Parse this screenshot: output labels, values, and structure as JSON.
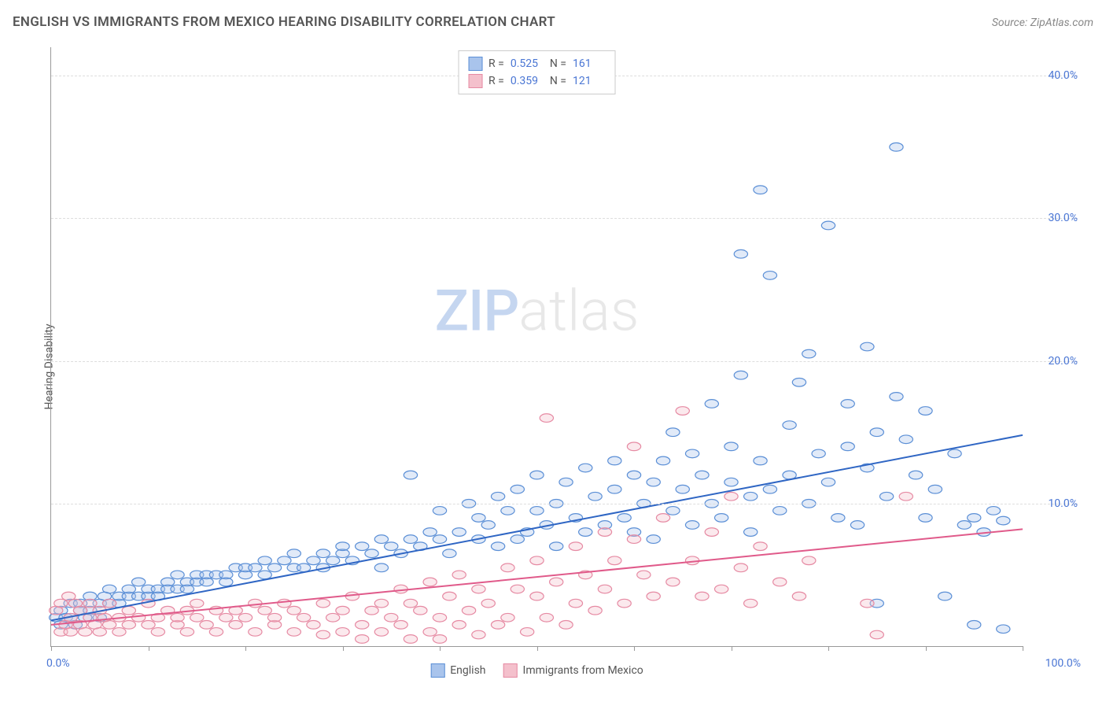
{
  "header": {
    "title": "ENGLISH VS IMMIGRANTS FROM MEXICO HEARING DISABILITY CORRELATION CHART",
    "source": "Source: ZipAtlas.com"
  },
  "watermark": {
    "part1": "ZIP",
    "part2": "atlas"
  },
  "chart": {
    "type": "scatter",
    "ylabel": "Hearing Disability",
    "background_color": "#ffffff",
    "grid_color": "#dddddd",
    "axis_color": "#999999",
    "xlim": [
      0,
      100
    ],
    "ylim": [
      0,
      42
    ],
    "yticks": [
      10,
      20,
      30,
      40
    ],
    "ytick_labels": [
      "10.0%",
      "20.0%",
      "30.0%",
      "40.0%"
    ],
    "ytick_color": "#4a76d4",
    "xticks": [
      0,
      10,
      20,
      30,
      40,
      50,
      60,
      70,
      80,
      90,
      100
    ],
    "xaxis_min_label": "0.0%",
    "xaxis_max_label": "100.0%",
    "xaxis_label_color": "#4a76d4",
    "marker_radius": 7,
    "marker_stroke_width": 1.2,
    "marker_fill_opacity": 0.35,
    "trend_line_width": 2,
    "series": [
      {
        "name": "English",
        "color_fill": "#a9c4ec",
        "color_stroke": "#5b8fd6",
        "trend_color": "#2f66c4",
        "r_value": "0.525",
        "n_value": "161",
        "trend_start": [
          0,
          1.8
        ],
        "trend_end": [
          100,
          14.8
        ],
        "points": [
          [
            0.5,
            2.0
          ],
          [
            1,
            1.5
          ],
          [
            1,
            2.5
          ],
          [
            1.5,
            2.0
          ],
          [
            2,
            3.0
          ],
          [
            2,
            2.0
          ],
          [
            2.5,
            1.5
          ],
          [
            3,
            2.5
          ],
          [
            3,
            3.0
          ],
          [
            3.5,
            2.0
          ],
          [
            4,
            3.5
          ],
          [
            4,
            2.5
          ],
          [
            5,
            3.0
          ],
          [
            5,
            2.0
          ],
          [
            5.5,
            3.5
          ],
          [
            6,
            3.0
          ],
          [
            6,
            4.0
          ],
          [
            7,
            3.0
          ],
          [
            7,
            3.5
          ],
          [
            8,
            3.5
          ],
          [
            8,
            4.0
          ],
          [
            9,
            3.5
          ],
          [
            9,
            4.5
          ],
          [
            10,
            3.5
          ],
          [
            10,
            4.0
          ],
          [
            11,
            4.0
          ],
          [
            11,
            3.5
          ],
          [
            12,
            4.5
          ],
          [
            12,
            4.0
          ],
          [
            13,
            4.0
          ],
          [
            13,
            5.0
          ],
          [
            14,
            4.5
          ],
          [
            14,
            4.0
          ],
          [
            15,
            4.5
          ],
          [
            15,
            5.0
          ],
          [
            16,
            5.0
          ],
          [
            16,
            4.5
          ],
          [
            17,
            5.0
          ],
          [
            18,
            5.0
          ],
          [
            18,
            4.5
          ],
          [
            19,
            5.5
          ],
          [
            20,
            5.0
          ],
          [
            20,
            5.5
          ],
          [
            21,
            5.5
          ],
          [
            22,
            5.0
          ],
          [
            22,
            6.0
          ],
          [
            23,
            5.5
          ],
          [
            24,
            6.0
          ],
          [
            25,
            5.5
          ],
          [
            25,
            6.5
          ],
          [
            26,
            5.5
          ],
          [
            27,
            6.0
          ],
          [
            28,
            6.5
          ],
          [
            28,
            5.5
          ],
          [
            29,
            6.0
          ],
          [
            30,
            6.5
          ],
          [
            30,
            7.0
          ],
          [
            31,
            6.0
          ],
          [
            32,
            7.0
          ],
          [
            33,
            6.5
          ],
          [
            34,
            5.5
          ],
          [
            34,
            7.5
          ],
          [
            35,
            7.0
          ],
          [
            36,
            6.5
          ],
          [
            37,
            7.5
          ],
          [
            37,
            12.0
          ],
          [
            38,
            7.0
          ],
          [
            39,
            8.0
          ],
          [
            40,
            7.5
          ],
          [
            40,
            9.5
          ],
          [
            41,
            6.5
          ],
          [
            42,
            8.0
          ],
          [
            43,
            10.0
          ],
          [
            44,
            7.5
          ],
          [
            44,
            9.0
          ],
          [
            45,
            8.5
          ],
          [
            46,
            7.0
          ],
          [
            46,
            10.5
          ],
          [
            47,
            9.5
          ],
          [
            48,
            7.5
          ],
          [
            48,
            11.0
          ],
          [
            49,
            8.0
          ],
          [
            50,
            9.5
          ],
          [
            50,
            12.0
          ],
          [
            51,
            8.5
          ],
          [
            52,
            10.0
          ],
          [
            52,
            7.0
          ],
          [
            53,
            11.5
          ],
          [
            54,
            9.0
          ],
          [
            55,
            8.0
          ],
          [
            55,
            12.5
          ],
          [
            56,
            10.5
          ],
          [
            57,
            8.5
          ],
          [
            58,
            11.0
          ],
          [
            58,
            13.0
          ],
          [
            59,
            9.0
          ],
          [
            60,
            12.0
          ],
          [
            60,
            8.0
          ],
          [
            61,
            10.0
          ],
          [
            62,
            11.5
          ],
          [
            62,
            7.5
          ],
          [
            63,
            13.0
          ],
          [
            64,
            9.5
          ],
          [
            64,
            15.0
          ],
          [
            65,
            11.0
          ],
          [
            66,
            8.5
          ],
          [
            66,
            13.5
          ],
          [
            67,
            12.0
          ],
          [
            68,
            10.0
          ],
          [
            68,
            17.0
          ],
          [
            69,
            9.0
          ],
          [
            70,
            14.0
          ],
          [
            70,
            11.5
          ],
          [
            71,
            19.0
          ],
          [
            71,
            27.5
          ],
          [
            72,
            10.5
          ],
          [
            72,
            8.0
          ],
          [
            73,
            13.0
          ],
          [
            73,
            32.0
          ],
          [
            74,
            11.0
          ],
          [
            74,
            26.0
          ],
          [
            75,
            9.5
          ],
          [
            76,
            15.5
          ],
          [
            76,
            12.0
          ],
          [
            77,
            18.5
          ],
          [
            78,
            20.5
          ],
          [
            78,
            10.0
          ],
          [
            79,
            13.5
          ],
          [
            80,
            29.5
          ],
          [
            80,
            11.5
          ],
          [
            81,
            9.0
          ],
          [
            82,
            17.0
          ],
          [
            82,
            14.0
          ],
          [
            83,
            8.5
          ],
          [
            84,
            21.0
          ],
          [
            84,
            12.5
          ],
          [
            85,
            15.0
          ],
          [
            85,
            3.0
          ],
          [
            86,
            10.5
          ],
          [
            87,
            17.5
          ],
          [
            87,
            35.0
          ],
          [
            88,
            14.5
          ],
          [
            89,
            12.0
          ],
          [
            90,
            9.0
          ],
          [
            90,
            16.5
          ],
          [
            91,
            11.0
          ],
          [
            92,
            3.5
          ],
          [
            93,
            13.5
          ],
          [
            94,
            8.5
          ],
          [
            95,
            9.0
          ],
          [
            95,
            1.5
          ],
          [
            96,
            8.0
          ],
          [
            97,
            9.5
          ],
          [
            98,
            1.2
          ],
          [
            98,
            8.8
          ]
        ]
      },
      {
        "name": "Immigrants from Mexico",
        "color_fill": "#f4c0cc",
        "color_stroke": "#e68aa3",
        "trend_color": "#e05a8a",
        "r_value": "0.359",
        "n_value": "121",
        "trend_start": [
          0,
          1.5
        ],
        "trend_end": [
          100,
          8.2
        ],
        "points": [
          [
            0.5,
            2.5
          ],
          [
            1,
            1.0
          ],
          [
            1,
            3.0
          ],
          [
            1.5,
            1.5
          ],
          [
            1.8,
            3.5
          ],
          [
            2,
            2.0
          ],
          [
            2,
            1.0
          ],
          [
            2.5,
            3.0
          ],
          [
            3,
            1.5
          ],
          [
            3,
            2.5
          ],
          [
            3.5,
            1.0
          ],
          [
            4,
            2.0
          ],
          [
            4,
            3.0
          ],
          [
            4.5,
            1.5
          ],
          [
            5,
            2.5
          ],
          [
            5,
            1.0
          ],
          [
            5.5,
            2.0
          ],
          [
            6,
            1.5
          ],
          [
            6,
            3.0
          ],
          [
            7,
            2.0
          ],
          [
            7,
            1.0
          ],
          [
            8,
            2.5
          ],
          [
            8,
            1.5
          ],
          [
            9,
            2.0
          ],
          [
            10,
            1.5
          ],
          [
            10,
            3.0
          ],
          [
            11,
            2.0
          ],
          [
            11,
            1.0
          ],
          [
            12,
            2.5
          ],
          [
            13,
            1.5
          ],
          [
            13,
            2.0
          ],
          [
            14,
            2.5
          ],
          [
            14,
            1.0
          ],
          [
            15,
            2.0
          ],
          [
            15,
            3.0
          ],
          [
            16,
            1.5
          ],
          [
            17,
            2.5
          ],
          [
            17,
            1.0
          ],
          [
            18,
            2.0
          ],
          [
            19,
            2.5
          ],
          [
            19,
            1.5
          ],
          [
            20,
            2.0
          ],
          [
            21,
            1.0
          ],
          [
            21,
            3.0
          ],
          [
            22,
            2.5
          ],
          [
            23,
            1.5
          ],
          [
            23,
            2.0
          ],
          [
            24,
            3.0
          ],
          [
            25,
            1.0
          ],
          [
            25,
            2.5
          ],
          [
            26,
            2.0
          ],
          [
            27,
            1.5
          ],
          [
            28,
            3.0
          ],
          [
            28,
            0.8
          ],
          [
            29,
            2.0
          ],
          [
            30,
            2.5
          ],
          [
            30,
            1.0
          ],
          [
            31,
            3.5
          ],
          [
            32,
            1.5
          ],
          [
            32,
            0.5
          ],
          [
            33,
            2.5
          ],
          [
            34,
            3.0
          ],
          [
            34,
            1.0
          ],
          [
            35,
            2.0
          ],
          [
            36,
            4.0
          ],
          [
            36,
            1.5
          ],
          [
            37,
            0.5
          ],
          [
            37,
            3.0
          ],
          [
            38,
            2.5
          ],
          [
            39,
            1.0
          ],
          [
            39,
            4.5
          ],
          [
            40,
            2.0
          ],
          [
            40,
            0.5
          ],
          [
            41,
            3.5
          ],
          [
            42,
            1.5
          ],
          [
            42,
            5.0
          ],
          [
            43,
            2.5
          ],
          [
            44,
            0.8
          ],
          [
            44,
            4.0
          ],
          [
            45,
            3.0
          ],
          [
            46,
            1.5
          ],
          [
            47,
            5.5
          ],
          [
            47,
            2.0
          ],
          [
            48,
            4.0
          ],
          [
            49,
            1.0
          ],
          [
            50,
            6.0
          ],
          [
            50,
            3.5
          ],
          [
            51,
            2.0
          ],
          [
            51,
            16.0
          ],
          [
            52,
            4.5
          ],
          [
            53,
            1.5
          ],
          [
            54,
            7.0
          ],
          [
            54,
            3.0
          ],
          [
            55,
            5.0
          ],
          [
            56,
            2.5
          ],
          [
            57,
            8.0
          ],
          [
            57,
            4.0
          ],
          [
            58,
            6.0
          ],
          [
            59,
            3.0
          ],
          [
            60,
            7.5
          ],
          [
            60,
            14.0
          ],
          [
            61,
            5.0
          ],
          [
            62,
            3.5
          ],
          [
            63,
            9.0
          ],
          [
            64,
            4.5
          ],
          [
            65,
            16.5
          ],
          [
            66,
            6.0
          ],
          [
            67,
            3.5
          ],
          [
            68,
            8.0
          ],
          [
            69,
            4.0
          ],
          [
            70,
            10.5
          ],
          [
            71,
            5.5
          ],
          [
            72,
            3.0
          ],
          [
            73,
            7.0
          ],
          [
            75,
            4.5
          ],
          [
            77,
            3.5
          ],
          [
            78,
            6.0
          ],
          [
            84,
            3.0
          ],
          [
            85,
            0.8
          ],
          [
            88,
            10.5
          ]
        ]
      }
    ]
  },
  "legend_bottom": [
    {
      "label": "English",
      "fill": "#a9c4ec",
      "stroke": "#5b8fd6"
    },
    {
      "label": "Immigrants from Mexico",
      "fill": "#f4c0cc",
      "stroke": "#e68aa3"
    }
  ]
}
